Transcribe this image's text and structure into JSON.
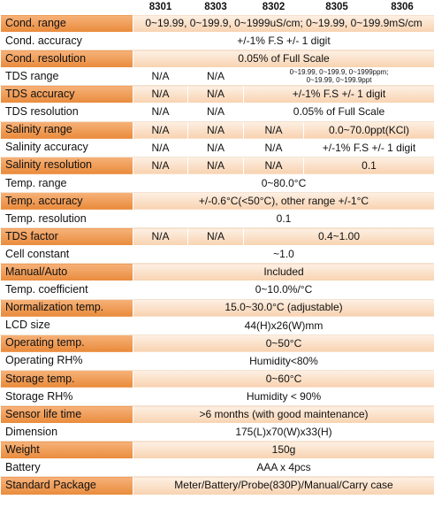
{
  "header": {
    "models": [
      "8301",
      "8303",
      "8302",
      "8305",
      "8306"
    ]
  },
  "table": {
    "rows": [
      [
        "Cond. range",
        "0~19.99, 0~199.9, 0~1999uS/cm; 0~19.99, 0~199.9mS/cm"
      ],
      [
        "Cond. accuracy",
        "+/-1% F.S +/- 1 digit"
      ],
      [
        "Cond. resolution",
        "0.05% of Full Scale"
      ],
      [
        "TDS range",
        "N/A",
        "N/A",
        "0~19.99, 0~199.9, 0~1999ppm;\n0~19.99, 0~199.9ppt"
      ],
      [
        "TDS accuracy",
        "N/A",
        "N/A",
        "+/-1% F.S +/- 1 digit"
      ],
      [
        "TDS resolution",
        "N/A",
        "N/A",
        "0.05% of Full Scale"
      ],
      [
        "Salinity range",
        "N/A",
        "N/A",
        "N/A",
        "0.0~70.0ppt(KCl)"
      ],
      [
        "Salinity accuracy",
        "N/A",
        "N/A",
        "N/A",
        "+/-1% F.S +/- 1 digit"
      ],
      [
        "Salinity resolution",
        "N/A",
        "N/A",
        "N/A",
        "0.1"
      ],
      [
        "Temp. range",
        "0~80.0°C"
      ],
      [
        "Temp. accuracy",
        "+/-0.6°C(<50°C), other range +/-1°C"
      ],
      [
        "Temp. resolution",
        "0.1"
      ],
      [
        "TDS factor",
        "N/A",
        "N/A",
        "0.4~1.00"
      ],
      [
        "Cell constant",
        "~1.0"
      ],
      [
        "Manual/Auto",
        "Included"
      ],
      [
        "Temp. coefficient",
        "0~10.0%/°C"
      ],
      [
        "Normalization temp.",
        "15.0~30.0°C (adjustable)"
      ],
      [
        "LCD size",
        "44(H)x26(W)mm"
      ],
      [
        "Operating temp.",
        "0~50°C"
      ],
      [
        "Operating RH%",
        "Humidity<80%"
      ],
      [
        "Storage temp.",
        "0~60°C"
      ],
      [
        "Storage RH%",
        "Humidity < 90%"
      ],
      [
        "Sensor life time",
        ">6 months (with good maintenance)"
      ],
      [
        "Dimension",
        "175(L)x70(W)x33(H)"
      ],
      [
        "Weight",
        "150g"
      ],
      [
        "Battery",
        "AAA x 4pcs"
      ],
      [
        "Standard Package",
        "Meter/Battery/Probe(830P)/Manual/Carry case"
      ]
    ]
  }
}
